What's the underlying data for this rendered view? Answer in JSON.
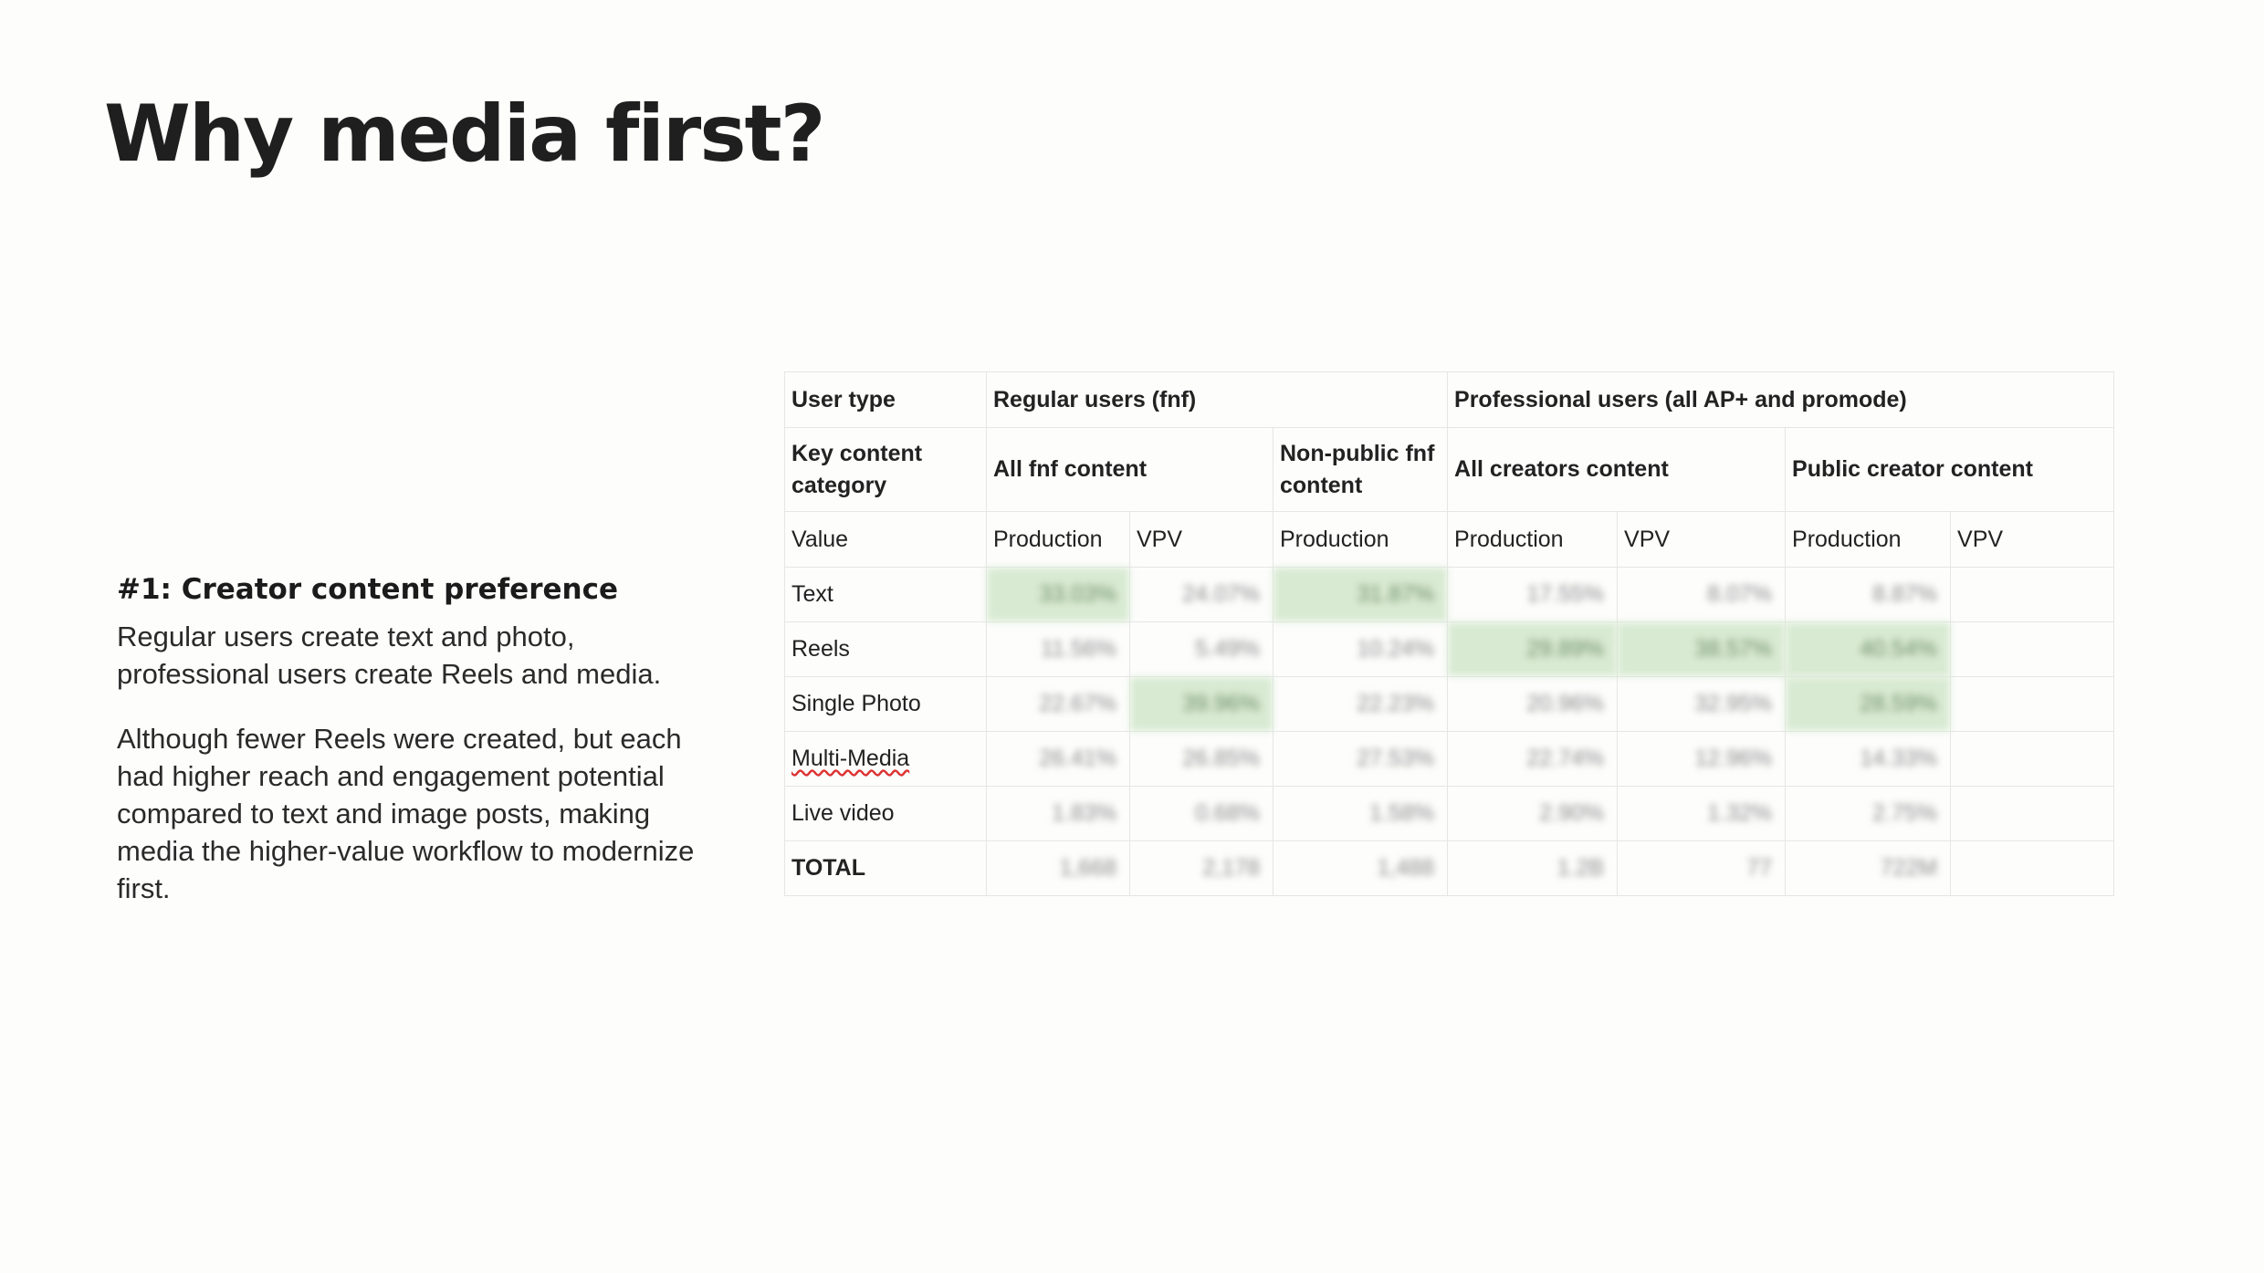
{
  "title": "Why media first?",
  "left": {
    "heading": "#1: Creator content preference",
    "para1": "Regular users create text and photo, professional users create Reels and media.",
    "para2": "Although fewer Reels were created, but each had higher reach and engagement potential compared to text and image posts, making media the higher-value workflow to modernize first."
  },
  "table": {
    "user_type_label": "User type",
    "regular_users": "Regular users (fnf)",
    "professional_users": "Professional users (all AP+ and promode)",
    "key_content_label": "Key content category",
    "all_fnf": "All fnf content",
    "non_public_fnf": "Non-public fnf content",
    "all_creators": "All creators content",
    "public_creator": "Public creator content",
    "value_label": "Value",
    "metrics": [
      "Production",
      "VPV",
      "Production",
      "Production",
      "VPV",
      "Production",
      "VPV"
    ],
    "rows": [
      {
        "label": "Text",
        "cells": [
          "33.03%",
          "24.07%",
          "31.87%",
          "17.55%",
          "8.07%",
          "8.87%",
          ""
        ]
      },
      {
        "label": "Reels",
        "cells": [
          "11.56%",
          "5.49%",
          "10.24%",
          "29.89%",
          "38.57%",
          "40.54%",
          ""
        ]
      },
      {
        "label": "Single Photo",
        "cells": [
          "22.67%",
          "39.96%",
          "22.23%",
          "20.96%",
          "32.95%",
          "28.59%",
          ""
        ]
      },
      {
        "label": "Multi-Media",
        "cells": [
          "26.41%",
          "26.85%",
          "27.53%",
          "22.74%",
          "12.96%",
          "14.33%",
          ""
        ]
      },
      {
        "label": "Live video",
        "cells": [
          "1.83%",
          "0.68%",
          "1.58%",
          "2.90%",
          "1.32%",
          "2.75%",
          ""
        ]
      },
      {
        "label": "TOTAL",
        "cells": [
          "1,668",
          "2,178",
          "1,488",
          "1.2B",
          "77",
          "722M",
          ""
        ]
      }
    ],
    "highlight_color": "#d8ead2"
  }
}
